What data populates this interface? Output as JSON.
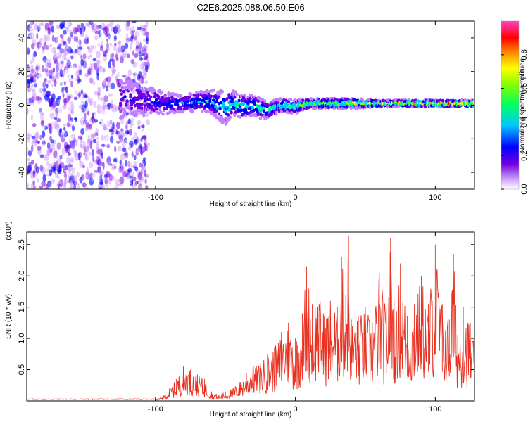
{
  "title": "C2E6.2025.088.06.50.E06",
  "chart_data": [
    {
      "type": "heatmap",
      "xlabel": "Height of straight line (km)",
      "ylabel": "Frequency (Hz)",
      "xlim": [
        -192,
        128
      ],
      "ylim": [
        -50,
        50
      ],
      "xticks": [
        -100,
        0,
        100
      ],
      "yticks": [
        -40,
        -20,
        0,
        20,
        40
      ],
      "colorbar": {
        "label": "Normalized spectral amplitude",
        "range": [
          0,
          1
        ],
        "ticks": [
          0.0,
          0.2,
          0.4,
          0.6,
          0.8
        ],
        "tick_labels": [
          "0.0",
          "0.2",
          "0.4",
          "0.6",
          "0.8"
        ],
        "colors": [
          "#ffffff",
          "#c080ff",
          "#7000e0",
          "#0000ff",
          "#00c8ff",
          "#00ff80",
          "#80ff00",
          "#ffff00",
          "#ff8000",
          "#ff0000",
          "#ff40c0"
        ]
      },
      "trace": {
        "x": [
          -125,
          -110,
          -100,
          -90,
          -80,
          -70,
          -60,
          -55,
          -50,
          -45,
          -40,
          -35,
          -30,
          -25,
          -20,
          -10,
          0,
          10,
          20,
          40,
          60,
          80,
          100,
          128
        ],
        "center_freq": [
          4,
          3,
          2,
          1,
          1,
          2,
          2,
          0,
          -2,
          1,
          0,
          -1,
          0,
          -2,
          -3,
          0,
          -1,
          1,
          1,
          1,
          1,
          1,
          1,
          1
        ],
        "spread": [
          12,
          9,
          8,
          6,
          5,
          6,
          7,
          9,
          10,
          8,
          7,
          7,
          6,
          6,
          5,
          4,
          4,
          3,
          3,
          3,
          2,
          2,
          2,
          2
        ]
      },
      "noise_region_x": [
        -192,
        -105
      ]
    },
    {
      "type": "line",
      "xlabel": "Height of straight line (km)",
      "ylabel": "SNR (10 * v/v)",
      "multiplier_label": "(x10⁴)",
      "xlim": [
        -192,
        128
      ],
      "ylim": [
        0,
        2.7
      ],
      "xticks": [
        -100,
        0,
        100
      ],
      "yticks": [
        0.5,
        1.0,
        1.5,
        2.0,
        2.5
      ],
      "ytick_labels": [
        "0.5",
        "1.0",
        "1.5",
        "2.0",
        "2.5"
      ],
      "line_color": "#e83020",
      "series": [
        {
          "x": [
            -192,
            -100,
            -95,
            -90,
            -85,
            -80,
            -75,
            -70,
            -65,
            -60,
            -55,
            -50,
            -45,
            -40,
            -35,
            -30,
            -25,
            -20,
            -15,
            -10,
            -5,
            0,
            5,
            8,
            12,
            16,
            20,
            25,
            30,
            33,
            36,
            38,
            40,
            45,
            50,
            55,
            60,
            65,
            68,
            72,
            75,
            80,
            85,
            90,
            95,
            100,
            105,
            110,
            113,
            116,
            120,
            125,
            128
          ],
          "y": [
            0.02,
            0.02,
            0.06,
            0.2,
            0.35,
            0.55,
            0.5,
            0.42,
            0.35,
            0.15,
            0.1,
            0.15,
            0.2,
            0.3,
            0.45,
            0.55,
            0.6,
            0.75,
            0.85,
            1.1,
            1.25,
            1.0,
            1.4,
            2.15,
            1.55,
            1.8,
            1.4,
            1.6,
            1.5,
            2.3,
            1.7,
            2.65,
            1.3,
            1.35,
            1.5,
            1.25,
            2.05,
            1.45,
            2.6,
            1.4,
            2.2,
            1.35,
            1.55,
            2.0,
            1.55,
            2.5,
            1.55,
            1.3,
            2.35,
            1.05,
            1.5,
            1.25,
            0.9
          ]
        }
      ]
    }
  ]
}
